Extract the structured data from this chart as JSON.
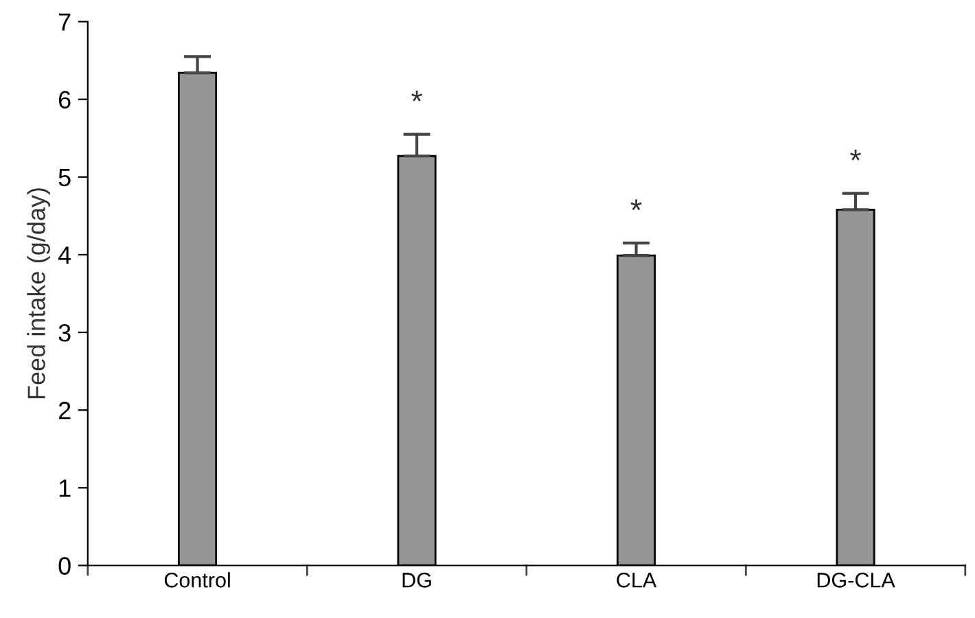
{
  "chart_data": {
    "type": "bar",
    "ylabel": "Feed intake (g/day)",
    "categories": [
      "Control",
      "DG",
      "CLA",
      "DG-CLA"
    ],
    "values": [
      6.34,
      5.27,
      3.99,
      4.58
    ],
    "errors": [
      [
        6.34,
        6.55
      ],
      [
        5.27,
        5.55
      ],
      [
        3.99,
        4.15
      ],
      [
        4.58,
        4.79
      ]
    ],
    "color": "#969696",
    "ylim": [
      0,
      7
    ],
    "yticks": [
      0,
      1,
      2,
      3,
      4,
      5,
      6,
      7
    ],
    "grid": false,
    "legend": false,
    "annotations": [
      "*",
      "*",
      "*"
    ]
  }
}
